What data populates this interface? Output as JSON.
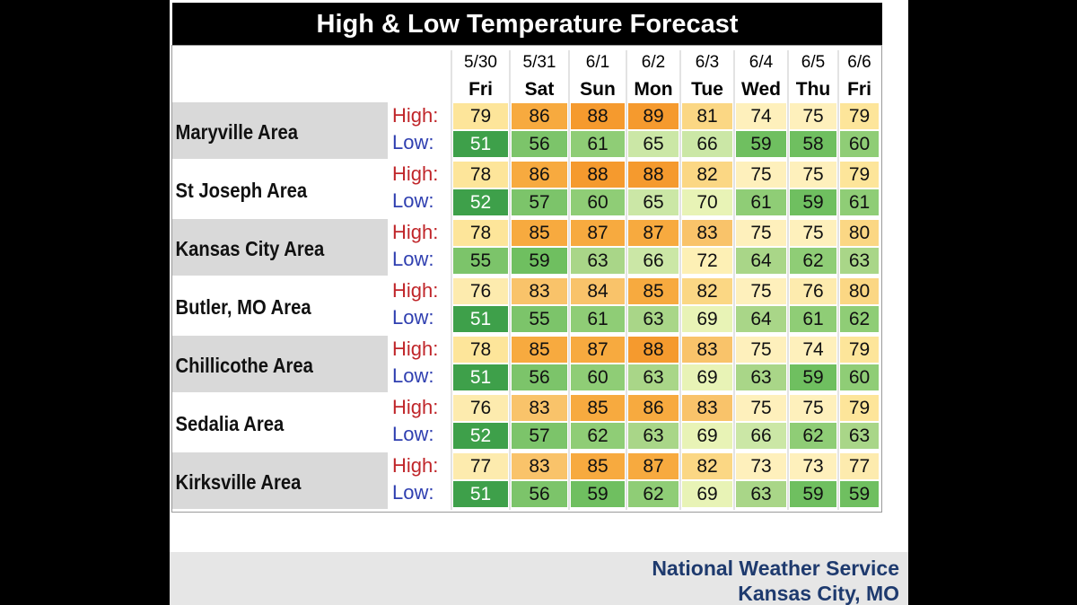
{
  "chart_data": {
    "type": "table",
    "title": "High & Low Temperature Forecast",
    "dates": [
      "5/30",
      "5/31",
      "6/1",
      "6/2",
      "6/3",
      "6/4",
      "6/5",
      "6/6"
    ],
    "days": [
      "Fri",
      "Sat",
      "Sun",
      "Mon",
      "Tue",
      "Wed",
      "Thu",
      "Fri"
    ],
    "row_labels": {
      "high": "High:",
      "low": "Low:"
    },
    "areas": [
      {
        "name": "Maryville Area",
        "high": [
          79,
          86,
          88,
          89,
          81,
          74,
          75,
          79
        ],
        "low": [
          51,
          56,
          61,
          65,
          66,
          59,
          58,
          60
        ]
      },
      {
        "name": "St Joseph Area",
        "high": [
          78,
          86,
          88,
          88,
          82,
          75,
          75,
          79
        ],
        "low": [
          52,
          57,
          60,
          65,
          70,
          61,
          59,
          61
        ]
      },
      {
        "name": "Kansas City Area",
        "high": [
          78,
          85,
          87,
          87,
          83,
          75,
          75,
          80
        ],
        "low": [
          55,
          59,
          63,
          66,
          72,
          64,
          62,
          63
        ]
      },
      {
        "name": "Butler, MO Area",
        "high": [
          76,
          83,
          84,
          85,
          82,
          75,
          76,
          80
        ],
        "low": [
          51,
          55,
          61,
          63,
          69,
          64,
          61,
          62
        ]
      },
      {
        "name": "Chillicothe Area",
        "high": [
          78,
          85,
          87,
          88,
          83,
          75,
          74,
          79
        ],
        "low": [
          51,
          56,
          60,
          63,
          69,
          63,
          59,
          60
        ]
      },
      {
        "name": "Sedalia Area",
        "high": [
          76,
          83,
          85,
          86,
          83,
          75,
          75,
          79
        ],
        "low": [
          52,
          57,
          62,
          63,
          69,
          66,
          62,
          63
        ]
      },
      {
        "name": "Kirksville Area",
        "high": [
          77,
          83,
          85,
          87,
          82,
          73,
          73,
          77
        ],
        "low": [
          51,
          56,
          59,
          62,
          69,
          63,
          59,
          59
        ]
      }
    ],
    "colors": {
      "high_label": "#c0262a",
      "low_label": "#2f3fb0",
      "area_band_shaded": "#d9d9d9",
      "area_band_plain": "#ffffff"
    }
  },
  "footer": {
    "line1": "National Weather Service",
    "line2": "Kansas City, MO"
  }
}
